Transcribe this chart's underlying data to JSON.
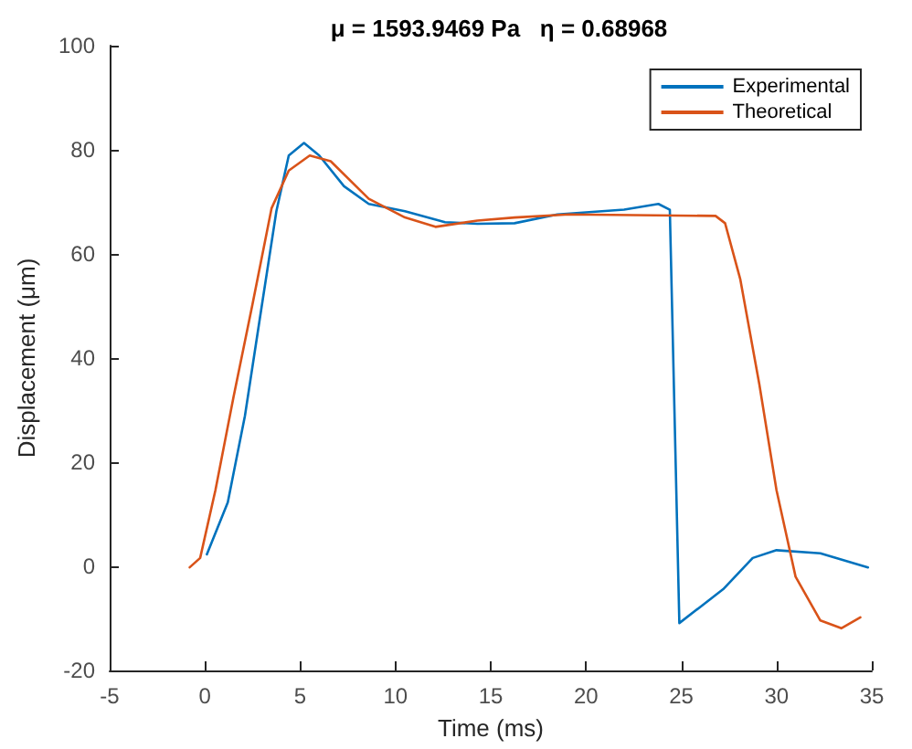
{
  "chart_data": {
    "type": "line",
    "title": "μ = 1593.9469 Pa   η = 0.68968",
    "xlabel": "Time (ms)",
    "ylabel": "Displacement (μm)",
    "xlim": [
      -5,
      35
    ],
    "xticks": [
      -5,
      0,
      5,
      10,
      15,
      20,
      25,
      30,
      35
    ],
    "ylim": [
      -20,
      100
    ],
    "yticks": [
      -20,
      0,
      20,
      40,
      60,
      80,
      100
    ],
    "grid": false,
    "legend": "top right",
    "marker": "none",
    "line_style": "solid",
    "series": [
      {
        "name": "Experimental",
        "color": "#0072bd",
        "x": [
          0.1,
          1.2,
          2.1,
          2.95,
          3.75,
          4.4,
          5.2,
          6.0,
          7.3,
          8.6,
          10.5,
          12.6,
          14.3,
          16.25,
          18.5,
          22.0,
          23.8,
          24.4,
          24.9,
          27.2,
          28.75,
          30.0,
          32.3,
          34.8
        ],
        "values": [
          2.3,
          12.3,
          28.9,
          49.2,
          68.2,
          78.9,
          81.3,
          78.9,
          73,
          69.6,
          68.2,
          66.1,
          65.8,
          65.9,
          67.6,
          68.5,
          69.6,
          68.5,
          -10.9,
          -4.4,
          1.6,
          3.1,
          2.5,
          -0.2
        ]
      },
      {
        "name": "Theoretical",
        "color": "#d95319",
        "x": [
          -0.8,
          -0.25,
          0.55,
          1.5,
          2.5,
          3.5,
          4.4,
          5.5,
          6.6,
          8.6,
          10.5,
          12.1,
          14.3,
          16.25,
          19.1,
          26.8,
          27.3,
          28.1,
          29.1,
          30.0,
          31.0,
          32.3,
          33.4,
          34.4
        ],
        "values": [
          -0.2,
          1.6,
          14.6,
          32.5,
          50.4,
          68.8,
          76,
          78.9,
          77.8,
          70.6,
          67,
          65.2,
          66.4,
          67,
          67.6,
          67.3,
          65.9,
          55.1,
          34.9,
          14.6,
          -2,
          -10.4,
          -11.9,
          -9.8
        ]
      }
    ]
  }
}
